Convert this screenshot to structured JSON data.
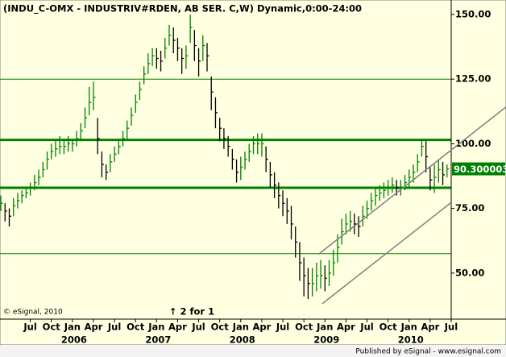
{
  "chart_data": {
    "type": "ohlc",
    "title": "(INDU_C-OMX - INDUSTRIV#RDEN, AB SER. C,W) Dynamic,0:00-24:00",
    "copyright": "© eSignal, 2010",
    "annotation": "↑ 2 for 1",
    "footer": "Published by eSignal - www.esignal.com",
    "background": "#ffffe1",
    "up_color": "#008000",
    "down_color": "#000000",
    "xlim": [
      2005.14,
      2010.5
    ],
    "ylim": [
      32.2,
      155.6
    ],
    "yticks": [
      {
        "value": 50,
        "label": "50.00"
      },
      {
        "value": 75,
        "label": "75.00"
      },
      {
        "value": 100,
        "label": "100.00"
      },
      {
        "value": 125,
        "label": "125.00"
      },
      {
        "value": 150,
        "label": "150.00"
      }
    ],
    "xticks": [
      {
        "value": 2005.5,
        "label": "Jul"
      },
      {
        "value": 2005.75,
        "label": "Oct"
      },
      {
        "value": 2006.0,
        "label": "Jan"
      },
      {
        "value": 2006.25,
        "label": "Apr"
      },
      {
        "value": 2006.5,
        "label": "Jul"
      },
      {
        "value": 2006.75,
        "label": "Oct"
      },
      {
        "value": 2007.0,
        "label": "Jan"
      },
      {
        "value": 2007.25,
        "label": "Apr"
      },
      {
        "value": 2007.5,
        "label": "Jul"
      },
      {
        "value": 2007.75,
        "label": "Oct"
      },
      {
        "value": 2008.0,
        "label": "Jan"
      },
      {
        "value": 2008.25,
        "label": "Apr"
      },
      {
        "value": 2008.5,
        "label": "Jul"
      },
      {
        "value": 2008.75,
        "label": "Oct"
      },
      {
        "value": 2009.0,
        "label": "Jan"
      },
      {
        "value": 2009.25,
        "label": "Apr"
      },
      {
        "value": 2009.5,
        "label": "Jul"
      },
      {
        "value": 2009.75,
        "label": "Oct"
      },
      {
        "value": 2010.0,
        "label": "Jan"
      },
      {
        "value": 2010.25,
        "label": "Apr"
      },
      {
        "value": 2010.5,
        "label": "Jul"
      }
    ],
    "year_ticks": [
      2006,
      2007,
      2008,
      2009,
      2010
    ],
    "x": [
      2005.15,
      2005.2,
      2005.25,
      2005.3,
      2005.35,
      2005.4,
      2005.45,
      2005.5,
      2005.55,
      2005.6,
      2005.65,
      2005.7,
      2005.75,
      2005.8,
      2005.85,
      2005.9,
      2005.95,
      2006.0,
      2006.05,
      2006.1,
      2006.15,
      2006.2,
      2006.25,
      2006.3,
      2006.35,
      2006.4,
      2006.45,
      2006.5,
      2006.55,
      2006.6,
      2006.65,
      2006.7,
      2006.75,
      2006.8,
      2006.85,
      2006.9,
      2006.95,
      2007.0,
      2007.05,
      2007.1,
      2007.15,
      2007.2,
      2007.25,
      2007.3,
      2007.35,
      2007.4,
      2007.45,
      2007.5,
      2007.55,
      2007.6,
      2007.65,
      2007.7,
      2007.75,
      2007.8,
      2007.85,
      2007.9,
      2007.95,
      2008.0,
      2008.05,
      2008.1,
      2008.15,
      2008.2,
      2008.25,
      2008.3,
      2008.35,
      2008.4,
      2008.45,
      2008.5,
      2008.55,
      2008.6,
      2008.65,
      2008.7,
      2008.75,
      2008.8,
      2008.85,
      2008.9,
      2008.95,
      2009.0,
      2009.05,
      2009.1,
      2009.15,
      2009.2,
      2009.25,
      2009.3,
      2009.35,
      2009.4,
      2009.45,
      2009.5,
      2009.55,
      2009.6,
      2009.65,
      2009.7,
      2009.75,
      2009.8,
      2009.85,
      2009.9,
      2009.95,
      2010.0,
      2010.05,
      2010.1,
      2010.15,
      2010.2,
      2010.25,
      2010.3,
      2010.35,
      2010.4,
      2010.45
    ],
    "high": [
      80,
      77,
      75,
      79,
      81,
      82,
      83,
      85,
      88,
      90,
      93,
      97,
      100,
      101,
      103,
      102,
      103,
      102,
      105,
      108,
      114,
      122,
      124,
      110,
      97,
      92,
      96,
      99,
      102,
      105,
      109,
      114,
      119,
      124,
      130,
      135,
      137,
      137,
      136,
      141,
      146,
      145,
      141,
      137,
      138,
      150,
      144,
      137,
      142,
      139,
      126,
      118,
      110,
      106,
      103,
      98,
      94,
      95,
      97,
      100,
      103,
      104,
      104,
      99,
      93,
      89,
      85,
      82,
      79,
      76,
      68,
      62,
      56,
      52,
      52,
      54,
      55,
      53,
      55,
      59,
      65,
      71,
      73,
      74,
      73,
      72,
      76,
      78,
      81,
      83,
      84,
      85,
      86,
      87,
      86,
      86,
      88,
      90,
      92,
      96,
      102,
      101,
      91,
      92,
      94,
      93,
      92
    ],
    "low": [
      74,
      70,
      68,
      72,
      75,
      77,
      79,
      80,
      82,
      84,
      87,
      90,
      94,
      95,
      96,
      96,
      97,
      97,
      99,
      101,
      106,
      111,
      113,
      96,
      87,
      86,
      89,
      93,
      96,
      99,
      102,
      107,
      112,
      117,
      123,
      127,
      130,
      129,
      128,
      133,
      138,
      135,
      132,
      127,
      129,
      139,
      132,
      126,
      132,
      128,
      113,
      106,
      101,
      98,
      95,
      90,
      85,
      86,
      90,
      93,
      96,
      96,
      95,
      89,
      83,
      79,
      75,
      72,
      69,
      63,
      56,
      47,
      41,
      40,
      41,
      43,
      44,
      43,
      45,
      49,
      54,
      61,
      65,
      66,
      65,
      64,
      68,
      71,
      74,
      76,
      78,
      79,
      80,
      81,
      80,
      80,
      82,
      83,
      85,
      89,
      95,
      89,
      82,
      81,
      85,
      84,
      87
    ],
    "close": [
      77,
      74,
      72,
      76,
      78,
      80,
      81,
      83,
      85,
      87,
      90,
      94,
      97,
      98,
      99,
      99,
      100,
      100,
      102,
      105,
      110,
      116,
      118,
      102,
      92,
      89,
      93,
      96,
      99,
      102,
      106,
      111,
      116,
      121,
      127,
      131,
      134,
      133,
      132,
      137,
      142,
      140,
      137,
      133,
      134,
      145,
      138,
      132,
      138,
      134,
      120,
      112,
      106,
      102,
      99,
      94,
      89,
      91,
      94,
      97,
      100,
      100,
      100,
      94,
      88,
      84,
      80,
      77,
      74,
      69,
      62,
      54,
      49,
      46,
      46,
      49,
      49,
      48,
      50,
      54,
      60,
      66,
      69,
      70,
      69,
      68,
      72,
      75,
      78,
      80,
      81,
      82,
      83,
      84,
      83,
      83,
      85,
      87,
      89,
      93,
      99,
      95,
      86,
      87,
      90,
      88,
      90.3
    ],
    "hlines": [
      {
        "value": 125,
        "color": "#008000",
        "weight": "thin"
      },
      {
        "value": 101.5,
        "color": "#008000",
        "weight": "thick"
      },
      {
        "value": 83,
        "color": "#008000",
        "weight": "thick"
      },
      {
        "value": 57.5,
        "color": "#008000",
        "weight": "thin"
      }
    ],
    "trendlines": [
      {
        "x": [
          2008.92,
          2011.15
        ],
        "y": [
          57.2,
          114.2
        ],
        "color": "#808080"
      },
      {
        "x": [
          2008.97,
          2010.5
        ],
        "y": [
          38.2,
          77.3
        ],
        "color": "#808080"
      }
    ],
    "last_value": 90.300003,
    "last_value_color": "#008000"
  }
}
